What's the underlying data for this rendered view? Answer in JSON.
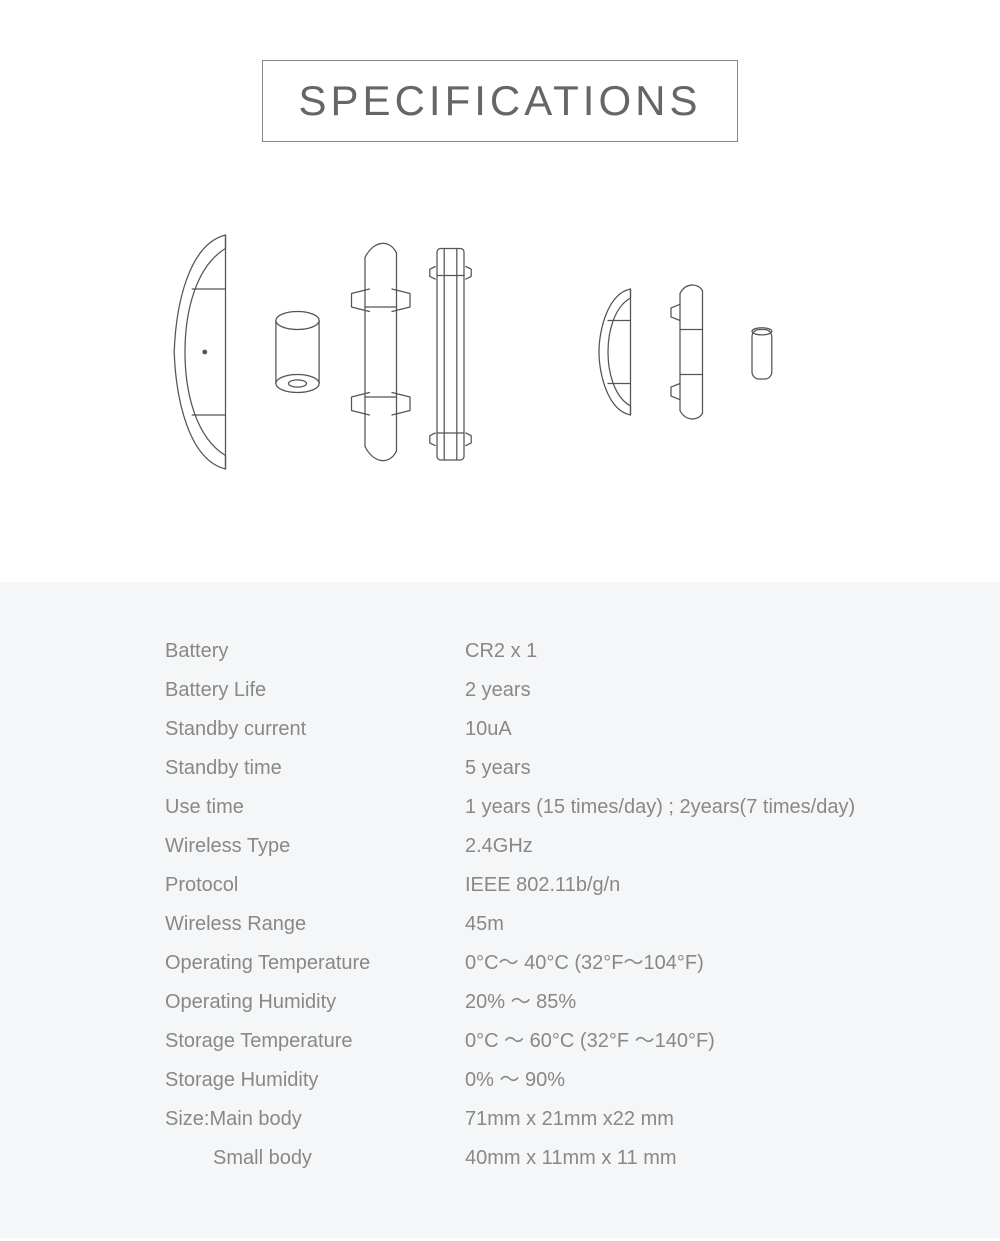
{
  "title": "SPECIFICATIONS",
  "colors": {
    "text": "#888888",
    "border": "#888888",
    "panel_bg": "#f5f6f7",
    "page_bg": "#ffffff",
    "line": "#555555"
  },
  "specs": [
    {
      "label": "Battery",
      "value": "CR2 x 1",
      "indent": false
    },
    {
      "label": "Battery Life",
      "value": "2 years",
      "indent": false
    },
    {
      "label": "Standby current",
      "value": "10uA",
      "indent": false
    },
    {
      "label": "Standby time",
      "value": "5 years",
      "indent": false
    },
    {
      "label": "Use time",
      "value": "1 years (15 times/day) ; 2years(7 times/day)",
      "indent": false
    },
    {
      "label": "Wireless Type",
      "value": " 2.4GHz",
      "indent": false
    },
    {
      "label": "Protocol",
      "value": "IEEE 802.11b/g/n",
      "indent": false
    },
    {
      "label": "Wireless Range",
      "value": "45m",
      "indent": false
    },
    {
      "label": "Operating Temperature",
      "value": "0°C～ 40°C  (32°F～104°F)",
      "indent": false
    },
    {
      "label": "Operating Humidity",
      "value": "20% ～ 85%",
      "indent": false
    },
    {
      "label": "Storage Temperature",
      "value": " 0°C ～ 60°C (32°F ～140°F)",
      "indent": false
    },
    {
      "label": "Storage Humidity",
      "value": "0% ～ 90%",
      "indent": false
    },
    {
      "label": "Size:Main body",
      "value": " 71mm x 21mm x22 mm",
      "indent": false
    },
    {
      "label": "Small body",
      "value": "40mm x 11mm x 11 mm",
      "indent": true
    }
  ],
  "diagram": {
    "type": "infographic",
    "description": "Exploded line-art views of a sensor: large body (cover, battery, bracket, plate) on the left; smaller body (cover, bracket, magnet) on the right.",
    "stroke": "#555555",
    "stroke_width": 1.4,
    "background": "#ffffff"
  }
}
